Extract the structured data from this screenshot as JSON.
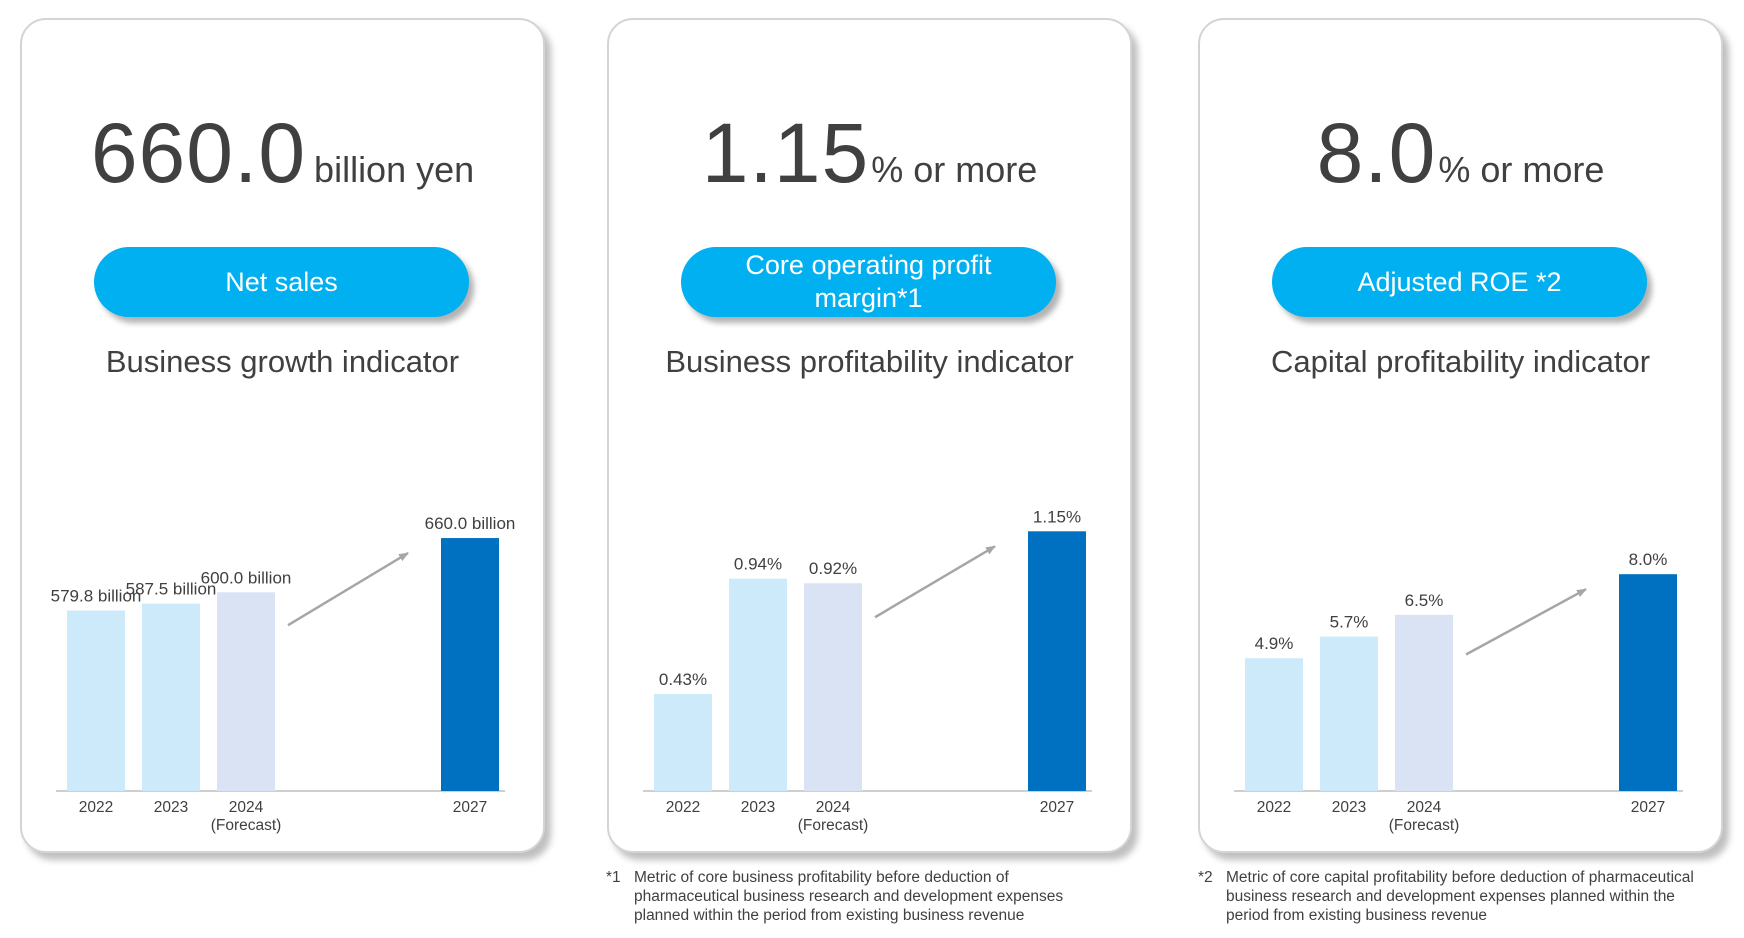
{
  "cards": [
    {
      "headline_value": "660.0",
      "headline_unit": "billion yen",
      "pill_label": "Net sales",
      "subtitle": "Business growth indicator"
    },
    {
      "headline_value": "1.15",
      "headline_unit": "% or more",
      "pill_label": "Core operating profit margin*1",
      "subtitle": "Business profitability indicator"
    },
    {
      "headline_value": "8.0",
      "headline_unit": "% or more",
      "pill_label": "Adjusted ROE *2",
      "subtitle": "Capital profitability indicator"
    }
  ],
  "chart_data": [
    {
      "type": "bar",
      "categories": [
        "2022",
        "2023",
        "2024",
        "2027"
      ],
      "category_sublabels": [
        "",
        "",
        "(Forecast)",
        ""
      ],
      "values": [
        579.8,
        587.5,
        600.0,
        660.0
      ],
      "data_labels": [
        "579.8 billion",
        "587.5 billion",
        "600.0 billion",
        "660.0 billion"
      ],
      "ylim": [
        380,
        680
      ],
      "bar_colors": [
        "#cdeafb",
        "#cdeafb",
        "#dae3f3",
        "#0070c0"
      ],
      "trend_arrow": true
    },
    {
      "type": "bar",
      "categories": [
        "2022",
        "2023",
        "2024",
        "2027"
      ],
      "category_sublabels": [
        "",
        "",
        "(Forecast)",
        ""
      ],
      "values": [
        0.43,
        0.94,
        0.92,
        1.15
      ],
      "data_labels": [
        "0.43%",
        "0.94%",
        "0.92%",
        "1.15%"
      ],
      "ylim": [
        0,
        1.2
      ],
      "bar_colors": [
        "#cdeafb",
        "#cdeafb",
        "#dae3f3",
        "#0070c0"
      ],
      "trend_arrow": true
    },
    {
      "type": "bar",
      "categories": [
        "2022",
        "2023",
        "2024",
        "2027"
      ],
      "category_sublabels": [
        "",
        "",
        "(Forecast)",
        ""
      ],
      "values": [
        4.9,
        5.7,
        6.5,
        8.0
      ],
      "data_labels": [
        "4.9%",
        "5.7%",
        "6.5%",
        "8.0%"
      ],
      "ylim": [
        0,
        10
      ],
      "bar_colors": [
        "#cdeafb",
        "#cdeafb",
        "#dae3f3",
        "#0070c0"
      ],
      "trend_arrow": true
    }
  ],
  "footnotes": [
    {
      "mark": "*1",
      "text": "Metric of core business profitability before deduction of pharmaceutical business research and development expenses planned within the period from existing business revenue"
    },
    {
      "mark": "*2",
      "text": "Metric of core capital profitability before deduction of pharmaceutical business research and development expenses  planned within the period from existing business revenue"
    }
  ]
}
